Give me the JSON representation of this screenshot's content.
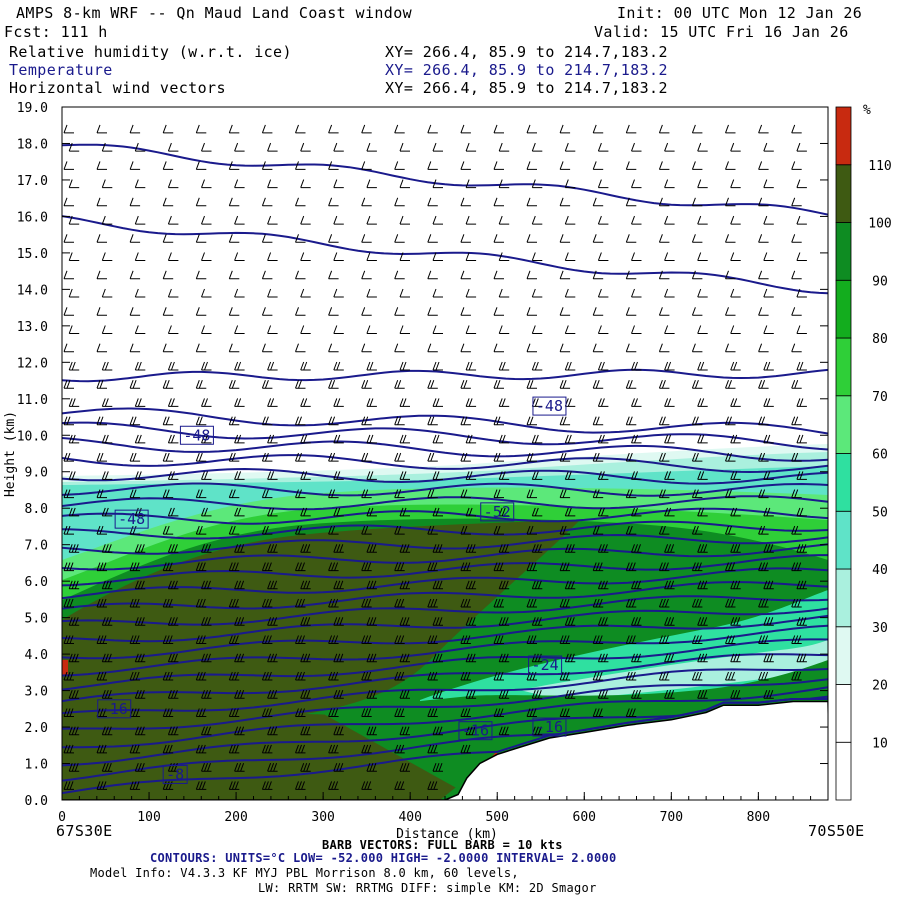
{
  "header": {
    "title": "AMPS 8-km WRF -- Qn Maud Land Coast window",
    "init": "Init: 00 UTC Mon 12 Jan 26",
    "fcst": "Fcst:  111 h",
    "valid": "Valid: 15 UTC Fri 16 Jan 26",
    "fields": [
      {
        "name": "Relative humidity (w.r.t. ice)",
        "xy": "XY= 266.4, 85.9 to 214.7,183.2"
      },
      {
        "name": "Temperature",
        "xy": "XY= 266.4, 85.9 to 214.7,183.2"
      },
      {
        "name": "Horizontal wind vectors",
        "xy": "XY= 266.4, 85.9 to 214.7,183.2"
      }
    ]
  },
  "footer": {
    "left_coord": "67S30E",
    "right_coord": "70S50E",
    "barb_note": "BARB VECTORS: FULL BARB = 10 kts",
    "contours_line": "CONTOURS:  UNITS=°C  LOW= -52.000       HIGH= -2.0000       INTERVAL=   2.0000",
    "model_info_1": "Model Info: V4.3.3   KF      MYJ PBL  Morrison          8.0 km,  60 levels,",
    "model_info_2": "LW: RRTM SW: RRTMG   DIFF: simple KM: 2D Smagor"
  },
  "colors": {
    "bg_contour": "#1a1a8c",
    "rh_levels": [
      "#ffffff",
      "#ffffff",
      "#ffffff",
      "#dff9f2",
      "#aaf0de",
      "#5fe3c8",
      "#2fe0a0",
      "#5ce87a",
      "#2fcf38",
      "#13ad1e",
      "#0e8c22",
      "#3e5a12",
      "#c82a10"
    ]
  },
  "chart_data": {
    "type": "cross-section",
    "xlabel": "Distance (km)",
    "ylabel": "Height (km)",
    "xlim": [
      0,
      880
    ],
    "ylim": [
      0,
      19
    ],
    "x_ticks": [
      0,
      100,
      200,
      300,
      400,
      500,
      600,
      700,
      800
    ],
    "x_tick_labels": [
      "0",
      "100",
      "200",
      "300",
      "400",
      "500",
      "600",
      "700",
      "800"
    ],
    "y_ticks": [
      0,
      1,
      2,
      3,
      4,
      5,
      6,
      7,
      8,
      9,
      10,
      11,
      12,
      13,
      14,
      15,
      16,
      17,
      18,
      19
    ],
    "y_tick_labels": [
      "0.0",
      "1.0",
      "2.0",
      "3.0",
      "4.0",
      "5.0",
      "6.0",
      "7.0",
      "8.0",
      "9.0",
      "10.0",
      "11.0",
      "12.0",
      "13.0",
      "14.0",
      "15.0",
      "16.0",
      "17.0",
      "18.0",
      "19.0"
    ],
    "colorbar": {
      "unit": "%",
      "levels": [
        10,
        20,
        30,
        40,
        50,
        60,
        70,
        80,
        90,
        100,
        110
      ],
      "labels": [
        "10",
        "20",
        "30",
        "40",
        "50",
        "60",
        "70",
        "80",
        "90",
        "100",
        "110"
      ]
    },
    "terrain_km": [
      [
        0,
        0
      ],
      [
        440,
        0
      ],
      [
        455,
        0.15
      ],
      [
        465,
        0.6
      ],
      [
        480,
        1.0
      ],
      [
        500,
        1.25
      ],
      [
        520,
        1.4
      ],
      [
        560,
        1.7
      ],
      [
        600,
        1.85
      ],
      [
        650,
        2.05
      ],
      [
        700,
        2.2
      ],
      [
        740,
        2.4
      ],
      [
        760,
        2.6
      ],
      [
        800,
        2.6
      ],
      [
        840,
        2.7
      ],
      [
        880,
        2.7
      ]
    ],
    "temperature_contours": {
      "units": "°C",
      "low": -52,
      "high": -2,
      "interval": 2,
      "labels": [
        {
          "text": "-48",
          "x": 155,
          "y": 10.0
        },
        {
          "text": "-48",
          "x": 560,
          "y": 10.8
        },
        {
          "text": "-48",
          "x": 80,
          "y": 7.7
        },
        {
          "text": "-52",
          "x": 500,
          "y": 7.9
        },
        {
          "text": "-24",
          "x": 555,
          "y": 3.7
        },
        {
          "text": "-16",
          "x": 60,
          "y": 2.5
        },
        {
          "text": "-16",
          "x": 475,
          "y": 1.9
        },
        {
          "text": "-16",
          "x": 560,
          "y": 2.0
        },
        {
          "text": "-8",
          "x": 130,
          "y": 0.7
        }
      ]
    }
  }
}
